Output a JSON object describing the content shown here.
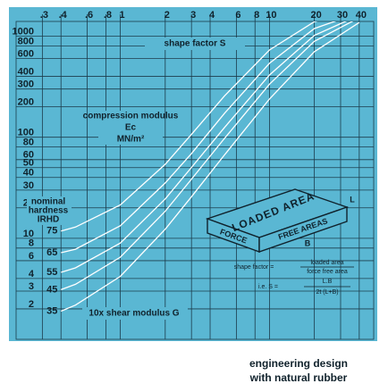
{
  "chart_data": {
    "type": "line",
    "x_label": "shape factor S",
    "y_label": [
      "compression modulus",
      "Ec",
      "MN/m²"
    ],
    "legend_title": [
      "nominal",
      "hardness",
      "IRHD"
    ],
    "baseline_label": "10x shear modulus G",
    "x": [
      0.4,
      0.5,
      1,
      2,
      3,
      5,
      10,
      20,
      40
    ],
    "series": [
      {
        "name": "75",
        "color": "#ffffff",
        "values": [
          11.8,
          12.9,
          21.4,
          54,
          107,
          257,
          730,
          1391,
          1802
        ]
      },
      {
        "name": "65",
        "color": "#ffffff",
        "values": [
          7.2,
          7.8,
          13.3,
          35.3,
          69,
          173,
          539,
          1189,
          1708
        ]
      },
      {
        "name": "55",
        "color": "#ffffff",
        "values": [
          4.6,
          5.09,
          8.97,
          24.5,
          50.3,
          125,
          413,
          1017,
          1611
        ]
      },
      {
        "name": "45",
        "color": "#ffffff",
        "values": [
          3.1,
          3.5,
          6.5,
          18.5,
          38.5,
          97.5,
          335,
          890,
          1524
        ]
      },
      {
        "name": "35",
        "color": "#ffffff",
        "values": [
          1.9,
          2.18,
          4.2,
          12.3,
          25.8,
          67,
          239,
          702,
          1367
        ]
      }
    ],
    "xscale": "log",
    "yscale": "log",
    "xlim": [
      0.2,
      50
    ],
    "ylim": [
      1,
      1400
    ],
    "xticks": [
      {
        "value": 0.3,
        "label": ".3"
      },
      {
        "value": 0.4,
        "label": ".4"
      },
      {
        "value": 0.6,
        "label": ".6"
      },
      {
        "value": 0.8,
        "label": ".8"
      },
      1,
      2,
      3,
      4,
      6,
      8,
      10,
      20,
      30,
      40
    ],
    "yticks": [
      2,
      3,
      4,
      6,
      8,
      10,
      20,
      30,
      40,
      50,
      60,
      80,
      100,
      200,
      300,
      400,
      600,
      800,
      1000
    ],
    "grid": true,
    "inset": {
      "top_face": "LOADED AREA",
      "left_face": "FORCE",
      "right_face": "FREE AREAS",
      "length": "L",
      "breadth": "B",
      "formula_lead": "shape factor =",
      "formula_num": "loaded area",
      "formula_den": "force free area",
      "ie_lead": "i.e. S =",
      "ie_num": "L.B",
      "ie_den": "2t (L+B)"
    }
  },
  "footer": [
    "engineering design",
    "with natural rubber"
  ]
}
